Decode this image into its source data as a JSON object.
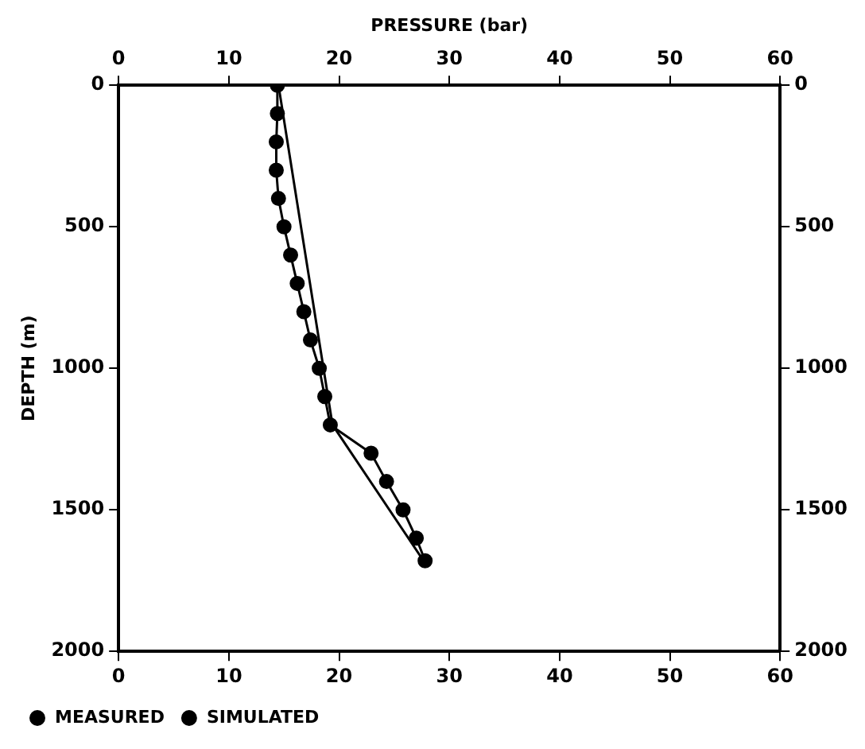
{
  "chart_data": {
    "type": "line",
    "x2label": "PRESSURE (bar)",
    "ylabel": "DEPTH (m)",
    "series": [
      {
        "name": "MEASURED",
        "color": "#000000",
        "marker": "circle",
        "x": [
          14.4,
          14.4,
          14.3,
          14.3,
          14.5,
          15.0,
          15.6,
          16.2,
          16.8,
          17.4,
          18.2,
          18.7,
          19.2,
          22.9,
          24.3,
          25.8,
          27.0,
          27.8
        ],
        "values": [
          0,
          100,
          200,
          300,
          400,
          500,
          600,
          700,
          800,
          900,
          1000,
          1100,
          1200,
          1300,
          1400,
          1500,
          1600,
          1680
        ]
      },
      {
        "name": "SIMULATED",
        "color": "#000000",
        "marker": "none",
        "x": [
          14.5,
          19.4,
          28.0
        ],
        "values": [
          0,
          1200,
          1700
        ]
      }
    ],
    "xlim": [
      0,
      60
    ],
    "xticks": [
      0,
      10,
      20,
      30,
      40,
      50,
      60
    ],
    "x2lim": [
      0,
      60
    ],
    "x2ticks": [
      0,
      10,
      20,
      30,
      40,
      50,
      60
    ],
    "ylim": [
      2000,
      0
    ],
    "yticks": [
      0,
      500,
      1000,
      1500,
      2000
    ],
    "y2lim": [
      2000,
      0
    ],
    "y2ticks": [
      0,
      500,
      1000,
      1500,
      2000
    ],
    "grid": false,
    "legend": "bottom left",
    "line_style": "solid"
  }
}
